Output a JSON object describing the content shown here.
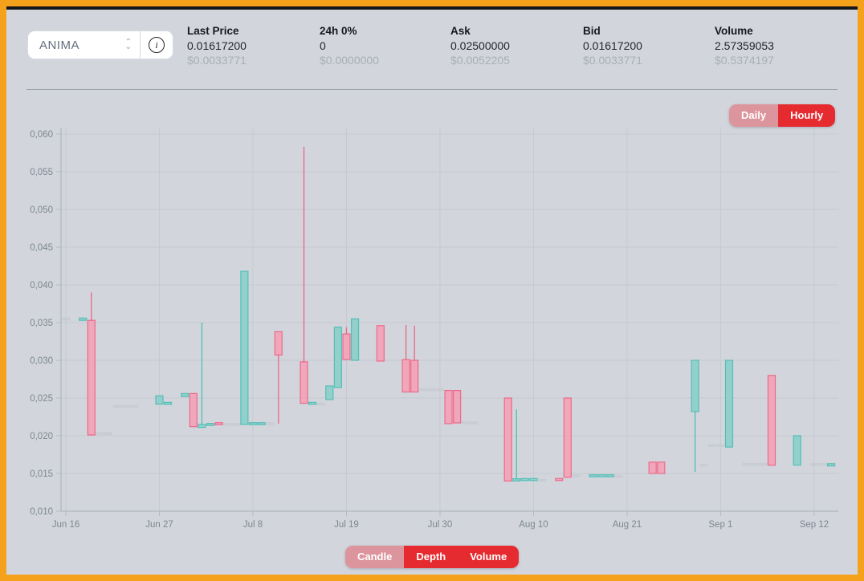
{
  "header": {
    "pair_select": {
      "value": "ANIMA"
    },
    "stats": [
      {
        "label": "Last Price",
        "value": "0.01617200",
        "sub": "$0.0033771"
      },
      {
        "label": "24h 0%",
        "value": "0",
        "sub": "$0.0000000"
      },
      {
        "label": "Ask",
        "value": "0.02500000",
        "sub": "$0.0052205"
      },
      {
        "label": "Bid",
        "value": "0.01617200",
        "sub": "$0.0033771"
      },
      {
        "label": "Volume",
        "value": "2.57359053",
        "sub": "$0.5374197"
      }
    ]
  },
  "toolbar": {
    "period": {
      "daily": "Daily",
      "hourly": "Hourly",
      "selected": "Daily"
    },
    "view": {
      "candle": "Candle",
      "depth": "Depth",
      "volume": "Volume",
      "selected": "Candle"
    }
  },
  "colors": {
    "frame_orange": "#f6a11c",
    "background": "#d2d6dc",
    "button_red": "#e62b30",
    "button_selected_pink": "#dc959c",
    "candle_up_fill": "#8fd0cc",
    "candle_up_stroke": "#4fbdb6",
    "candle_down_fill": "#f2a5b8",
    "candle_down_stroke": "#ee6487",
    "candle_flat": "#c6cad1",
    "grid": "#c5c9d1",
    "axis": "#b4bac3",
    "axis_label": "#7d8692"
  },
  "chart_data": {
    "type": "candlestick",
    "title": "",
    "y_axis": {
      "min": 0.01,
      "max": 0.06,
      "step": 0.005,
      "tick_labels": [
        "0,060",
        "0,055",
        "0,050",
        "0,045",
        "0,040",
        "0,035",
        "0,030",
        "0,025",
        "0,020",
        "0,015",
        "0,010"
      ]
    },
    "x_axis": {
      "ticks": [
        {
          "day": 0,
          "label": "Jun 16"
        },
        {
          "day": 11,
          "label": "Jun 27"
        },
        {
          "day": 22,
          "label": "Jul 8"
        },
        {
          "day": 33,
          "label": "Jul 19"
        },
        {
          "day": 44,
          "label": "Jul 30"
        },
        {
          "day": 55,
          "label": "Aug 10"
        },
        {
          "day": 66,
          "label": "Aug 21"
        },
        {
          "day": 77,
          "label": "Sep 1"
        },
        {
          "day": 88,
          "label": "Sep 12"
        }
      ]
    },
    "candles": [
      {
        "day": 0,
        "open": 0.0355,
        "high": 0.0355,
        "low": 0.0355,
        "close": 0.0355,
        "trend": "flat"
      },
      {
        "day": 2,
        "open": 0.0353,
        "high": 0.0356,
        "low": 0.0353,
        "close": 0.0356,
        "trend": "up"
      },
      {
        "day": 3,
        "open": 0.0353,
        "high": 0.039,
        "low": 0.0201,
        "close": 0.0201,
        "trend": "down"
      },
      {
        "day": 4,
        "open": 0.0203,
        "high": 0.0203,
        "low": 0.0203,
        "close": 0.0203,
        "trend": "flat"
      },
      {
        "day": 5,
        "open": 0.0203,
        "high": 0.0203,
        "low": 0.0203,
        "close": 0.0203,
        "trend": "flat"
      },
      {
        "day": 6,
        "open": 0.0239,
        "high": 0.0239,
        "low": 0.0239,
        "close": 0.0239,
        "trend": "flat"
      },
      {
        "day": 7,
        "open": 0.0239,
        "high": 0.0239,
        "low": 0.0239,
        "close": 0.0239,
        "trend": "flat"
      },
      {
        "day": 8,
        "open": 0.0239,
        "high": 0.0239,
        "low": 0.0239,
        "close": 0.0239,
        "trend": "flat"
      },
      {
        "day": 11,
        "open": 0.0242,
        "high": 0.0253,
        "low": 0.0242,
        "close": 0.0253,
        "trend": "up"
      },
      {
        "day": 12,
        "open": 0.0241,
        "high": 0.0243,
        "low": 0.0241,
        "close": 0.0243,
        "trend": "up"
      },
      {
        "day": 14,
        "open": 0.0252,
        "high": 0.0256,
        "low": 0.0252,
        "close": 0.0256,
        "trend": "up"
      },
      {
        "day": 15,
        "open": 0.0256,
        "high": 0.0256,
        "low": 0.0211,
        "close": 0.0212,
        "trend": "down"
      },
      {
        "day": 16,
        "open": 0.0211,
        "high": 0.035,
        "low": 0.0211,
        "close": 0.0215,
        "trend": "up"
      },
      {
        "day": 17,
        "open": 0.0213,
        "high": 0.0215,
        "low": 0.0213,
        "close": 0.0215,
        "trend": "up"
      },
      {
        "day": 18,
        "open": 0.0216,
        "high": 0.0216,
        "low": 0.0214,
        "close": 0.0214,
        "trend": "down"
      },
      {
        "day": 19,
        "open": 0.0215,
        "high": 0.0215,
        "low": 0.0215,
        "close": 0.0215,
        "trend": "flat"
      },
      {
        "day": 20,
        "open": 0.0215,
        "high": 0.0215,
        "low": 0.0215,
        "close": 0.0215,
        "trend": "flat"
      },
      {
        "day": 21,
        "open": 0.0215,
        "high": 0.0418,
        "low": 0.0215,
        "close": 0.0418,
        "trend": "up"
      },
      {
        "day": 22,
        "open": 0.0214,
        "high": 0.0216,
        "low": 0.0214,
        "close": 0.0216,
        "trend": "up"
      },
      {
        "day": 23,
        "open": 0.0214,
        "high": 0.0216,
        "low": 0.0214,
        "close": 0.0216,
        "trend": "up"
      },
      {
        "day": 24,
        "open": 0.0216,
        "high": 0.0216,
        "low": 0.0216,
        "close": 0.0216,
        "trend": "flat"
      },
      {
        "day": 25,
        "open": 0.0338,
        "high": 0.0339,
        "low": 0.0216,
        "close": 0.0307,
        "trend": "down"
      },
      {
        "day": 28,
        "open": 0.0298,
        "high": 0.0583,
        "low": 0.0242,
        "close": 0.0243,
        "trend": "down"
      },
      {
        "day": 29,
        "open": 0.0241,
        "high": 0.0243,
        "low": 0.0241,
        "close": 0.0243,
        "trend": "up"
      },
      {
        "day": 30,
        "open": 0.0242,
        "high": 0.0242,
        "low": 0.0242,
        "close": 0.0242,
        "trend": "flat"
      },
      {
        "day": 31,
        "open": 0.0248,
        "high": 0.0266,
        "low": 0.0248,
        "close": 0.0266,
        "trend": "up"
      },
      {
        "day": 32,
        "open": 0.0264,
        "high": 0.0344,
        "low": 0.0264,
        "close": 0.0344,
        "trend": "up"
      },
      {
        "day": 33,
        "open": 0.0335,
        "high": 0.0344,
        "low": 0.0301,
        "close": 0.0301,
        "trend": "down"
      },
      {
        "day": 34,
        "open": 0.03,
        "high": 0.0355,
        "low": 0.03,
        "close": 0.0355,
        "trend": "up"
      },
      {
        "day": 37,
        "open": 0.0346,
        "high": 0.0346,
        "low": 0.0299,
        "close": 0.0299,
        "trend": "down"
      },
      {
        "day": 40,
        "open": 0.0301,
        "high": 0.0347,
        "low": 0.0258,
        "close": 0.0258,
        "trend": "down"
      },
      {
        "day": 41,
        "open": 0.03,
        "high": 0.0346,
        "low": 0.0258,
        "close": 0.0258,
        "trend": "down"
      },
      {
        "day": 42,
        "open": 0.0261,
        "high": 0.0261,
        "low": 0.0261,
        "close": 0.0261,
        "trend": "flat"
      },
      {
        "day": 43,
        "open": 0.0261,
        "high": 0.0261,
        "low": 0.0261,
        "close": 0.0261,
        "trend": "flat"
      },
      {
        "day": 44,
        "open": 0.0261,
        "high": 0.0261,
        "low": 0.0261,
        "close": 0.0261,
        "trend": "flat"
      },
      {
        "day": 45,
        "open": 0.026,
        "high": 0.026,
        "low": 0.0216,
        "close": 0.0216,
        "trend": "down"
      },
      {
        "day": 46,
        "open": 0.026,
        "high": 0.026,
        "low": 0.0217,
        "close": 0.0217,
        "trend": "down"
      },
      {
        "day": 47,
        "open": 0.0217,
        "high": 0.0217,
        "low": 0.0217,
        "close": 0.0217,
        "trend": "flat"
      },
      {
        "day": 48,
        "open": 0.0217,
        "high": 0.0217,
        "low": 0.0217,
        "close": 0.0217,
        "trend": "flat"
      },
      {
        "day": 52,
        "open": 0.025,
        "high": 0.025,
        "low": 0.014,
        "close": 0.014,
        "trend": "down"
      },
      {
        "day": 53,
        "open": 0.014,
        "high": 0.0235,
        "low": 0.014,
        "close": 0.0143,
        "trend": "up"
      },
      {
        "day": 54,
        "open": 0.014,
        "high": 0.0142,
        "low": 0.014,
        "close": 0.0142,
        "trend": "up"
      },
      {
        "day": 55,
        "open": 0.014,
        "high": 0.0142,
        "low": 0.014,
        "close": 0.0142,
        "trend": "up"
      },
      {
        "day": 56,
        "open": 0.0141,
        "high": 0.0141,
        "low": 0.0141,
        "close": 0.0141,
        "trend": "flat"
      },
      {
        "day": 58,
        "open": 0.0142,
        "high": 0.0142,
        "low": 0.014,
        "close": 0.014,
        "trend": "down"
      },
      {
        "day": 59,
        "open": 0.025,
        "high": 0.025,
        "low": 0.0145,
        "close": 0.0145,
        "trend": "down"
      },
      {
        "day": 60,
        "open": 0.0147,
        "high": 0.0147,
        "low": 0.0147,
        "close": 0.0147,
        "trend": "flat"
      },
      {
        "day": 62,
        "open": 0.0145,
        "high": 0.0147,
        "low": 0.0145,
        "close": 0.0147,
        "trend": "up"
      },
      {
        "day": 63,
        "open": 0.0145,
        "high": 0.0147,
        "low": 0.0145,
        "close": 0.0147,
        "trend": "up"
      },
      {
        "day": 64,
        "open": 0.0145,
        "high": 0.0147,
        "low": 0.0145,
        "close": 0.0147,
        "trend": "up"
      },
      {
        "day": 65,
        "open": 0.0146,
        "high": 0.0146,
        "low": 0.0146,
        "close": 0.0146,
        "trend": "flat"
      },
      {
        "day": 69,
        "open": 0.0165,
        "high": 0.0165,
        "low": 0.015,
        "close": 0.015,
        "trend": "down"
      },
      {
        "day": 70,
        "open": 0.0165,
        "high": 0.0165,
        "low": 0.015,
        "close": 0.015,
        "trend": "down"
      },
      {
        "day": 74,
        "open": 0.0232,
        "high": 0.03,
        "low": 0.0152,
        "close": 0.03,
        "trend": "up"
      },
      {
        "day": 75,
        "open": 0.0161,
        "high": 0.0161,
        "low": 0.0161,
        "close": 0.0161,
        "trend": "flat"
      },
      {
        "day": 76,
        "open": 0.0187,
        "high": 0.0187,
        "low": 0.0187,
        "close": 0.0187,
        "trend": "flat"
      },
      {
        "day": 77,
        "open": 0.0187,
        "high": 0.0187,
        "low": 0.0187,
        "close": 0.0187,
        "trend": "flat"
      },
      {
        "day": 78,
        "open": 0.0185,
        "high": 0.03,
        "low": 0.0185,
        "close": 0.03,
        "trend": "up"
      },
      {
        "day": 80,
        "open": 0.0162,
        "high": 0.0162,
        "low": 0.0162,
        "close": 0.0162,
        "trend": "flat"
      },
      {
        "day": 81,
        "open": 0.0162,
        "high": 0.0162,
        "low": 0.0162,
        "close": 0.0162,
        "trend": "flat"
      },
      {
        "day": 82,
        "open": 0.0162,
        "high": 0.0162,
        "low": 0.0162,
        "close": 0.0162,
        "trend": "flat"
      },
      {
        "day": 83,
        "open": 0.028,
        "high": 0.028,
        "low": 0.0161,
        "close": 0.0161,
        "trend": "down"
      },
      {
        "day": 86,
        "open": 0.0161,
        "high": 0.02,
        "low": 0.0161,
        "close": 0.02,
        "trend": "up"
      },
      {
        "day": 88,
        "open": 0.0162,
        "high": 0.0162,
        "low": 0.0162,
        "close": 0.0162,
        "trend": "flat"
      },
      {
        "day": 89,
        "open": 0.0162,
        "high": 0.0162,
        "low": 0.0162,
        "close": 0.0162,
        "trend": "flat"
      },
      {
        "day": 90,
        "open": 0.016,
        "high": 0.0163,
        "low": 0.016,
        "close": 0.0163,
        "trend": "up"
      }
    ]
  }
}
